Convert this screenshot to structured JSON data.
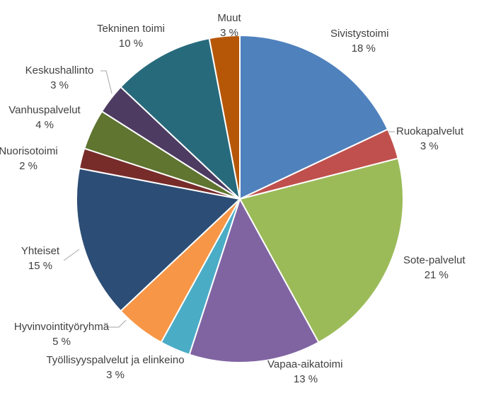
{
  "chart_data": {
    "type": "pie",
    "title": "",
    "slices": [
      {
        "label": "Sivistystoimi",
        "value": 18,
        "value_text": "18 %",
        "color": "#4f81bd"
      },
      {
        "label": "Ruokapalvelut",
        "value": 3,
        "value_text": "3 %",
        "color": "#c0504d"
      },
      {
        "label": "Sote-palvelut",
        "value": 21,
        "value_text": "21 %",
        "color": "#9bbb59"
      },
      {
        "label": "Vapaa-aikatoimi",
        "value": 13,
        "value_text": "13 %",
        "color": "#8064a2"
      },
      {
        "label": "Työllisyyspalvelut ja elinkeino",
        "value": 3,
        "value_text": "3 %",
        "color": "#4bacc6"
      },
      {
        "label": "Hyvinvointityöryhmä",
        "value": 5,
        "value_text": "5 %",
        "color": "#f79646"
      },
      {
        "label": "Yhteiset",
        "value": 15,
        "value_text": "15 %",
        "color": "#2c4d75"
      },
      {
        "label": "Nuorisotoimi",
        "value": 2,
        "value_text": "2 %",
        "color": "#772c2a"
      },
      {
        "label": "Vanhuspalvelut",
        "value": 4,
        "value_text": "4 %",
        "color": "#5f7530"
      },
      {
        "label": "Keskushallinto",
        "value": 3,
        "value_text": "3 %",
        "color": "#4d3b62"
      },
      {
        "label": "Tekninen toimi",
        "value": 10,
        "value_text": "10 %",
        "color": "#276a7c"
      },
      {
        "label": "Muut",
        "value": 3,
        "value_text": "3 %",
        "color": "#b65708"
      }
    ]
  }
}
